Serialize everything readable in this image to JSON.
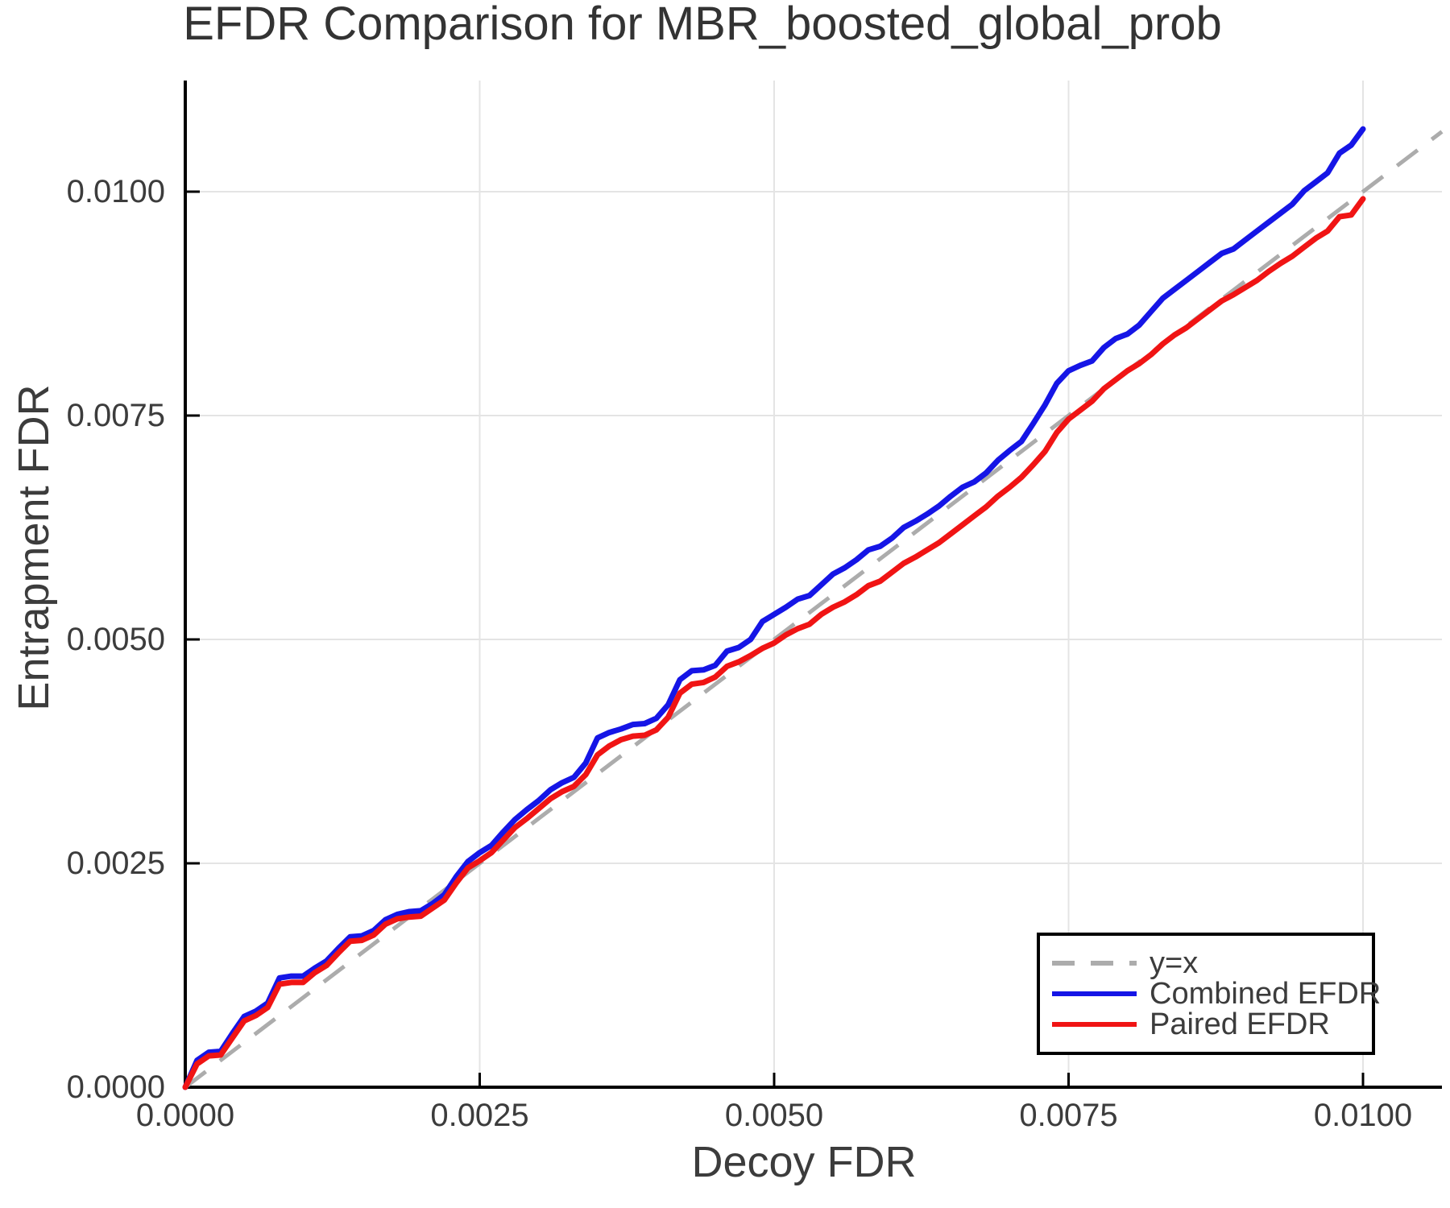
{
  "figure": {
    "background": "#FFFFFF"
  },
  "chart_data": {
    "type": "line",
    "title": "EFDR Comparison for MBR_boosted_global_prob",
    "xlabel": "Decoy FDR",
    "ylabel": "Entrapment FDR",
    "xlim": [
      0.0,
      0.01067
    ],
    "ylim": [
      0.0,
      0.01124
    ],
    "grid": true,
    "legend_position": "bottom-right",
    "colors": {
      "grid": "#E4E4E4",
      "axis": "#000000",
      "text": "#3C3C3C",
      "title": "#333333"
    },
    "x_ticks": {
      "values": [
        0.0,
        0.0025,
        0.005,
        0.0075,
        0.01
      ],
      "labels": [
        "0.0000",
        "0.0025",
        "0.0050",
        "0.0075",
        "0.0100"
      ]
    },
    "y_ticks": {
      "values": [
        0.0,
        0.0025,
        0.005,
        0.0075,
        0.01
      ],
      "labels": [
        "0.0000",
        "0.0025",
        "0.0050",
        "0.0075",
        "0.0100"
      ]
    },
    "reference_line": {
      "name": "y=x",
      "color": "#ACACAC",
      "style": "dashed",
      "from": [
        0.0,
        0.0
      ],
      "to": [
        0.01067,
        0.01067
      ]
    },
    "x": [
      0,
      0.0001,
      0.0002,
      0.0003,
      0.0004,
      0.0005,
      0.0006,
      0.0007,
      0.0008,
      0.0009,
      0.001,
      0.0011,
      0.0012,
      0.0013,
      0.0014,
      0.0015,
      0.0016,
      0.0017,
      0.0018,
      0.0019,
      0.002,
      0.0021,
      0.0022,
      0.0023,
      0.0024,
      0.0025,
      0.0026,
      0.0027,
      0.0028,
      0.0029,
      0.003,
      0.0031,
      0.0032,
      0.0033,
      0.0034,
      0.0035,
      0.0036,
      0.0037,
      0.0038,
      0.0039,
      0.004,
      0.0041,
      0.0042,
      0.0043,
      0.0044,
      0.0045,
      0.0046,
      0.0047,
      0.0048,
      0.0049,
      0.005,
      0.0051,
      0.0052,
      0.0053,
      0.0054,
      0.0055,
      0.0056,
      0.0057,
      0.0058,
      0.0059,
      0.006,
      0.0061,
      0.0062,
      0.0063,
      0.0064,
      0.0065,
      0.0066,
      0.0067,
      0.0068,
      0.0069,
      0.007,
      0.0071,
      0.0072,
      0.0073,
      0.0074,
      0.0075,
      0.0076,
      0.0077,
      0.0078,
      0.0079,
      0.008,
      0.0081,
      0.0082,
      0.0083,
      0.0084,
      0.0085,
      0.0086,
      0.0087,
      0.0088,
      0.0089,
      0.009,
      0.0091,
      0.0092,
      0.0093,
      0.0094,
      0.0095,
      0.0096,
      0.0097,
      0.0098,
      0.0099,
      0.01
    ],
    "series": [
      {
        "name": "Combined EFDR",
        "color": "#1515E6",
        "style": "solid",
        "values": [
          0,
          0.0003,
          0.00039,
          0.0004,
          0.0006,
          0.00079,
          0.00085,
          0.00094,
          0.00122,
          0.00124,
          0.00124,
          0.00133,
          0.00141,
          0.00155,
          0.00168,
          0.00169,
          0.00175,
          0.00187,
          0.00193,
          0.00196,
          0.00197,
          0.00205,
          0.00215,
          0.00235,
          0.00252,
          0.00262,
          0.0027,
          0.00285,
          0.00299,
          0.0031,
          0.0032,
          0.00332,
          0.0034,
          0.00346,
          0.00362,
          0.0039,
          0.00396,
          0.004,
          0.00405,
          0.00406,
          0.00412,
          0.00427,
          0.00455,
          0.00465,
          0.00466,
          0.00471,
          0.00487,
          0.00491,
          0.005,
          0.0052,
          0.00528,
          0.00536,
          0.00545,
          0.00549,
          0.00561,
          0.00573,
          0.0058,
          0.00589,
          0.006,
          0.00604,
          0.00613,
          0.00625,
          0.00632,
          0.0064,
          0.00649,
          0.0066,
          0.0067,
          0.00676,
          0.00686,
          0.007,
          0.00711,
          0.00721,
          0.00741,
          0.00762,
          0.00786,
          0.008,
          0.00806,
          0.00811,
          0.00826,
          0.00836,
          0.00841,
          0.00851,
          0.00866,
          0.00881,
          0.00891,
          0.00901,
          0.00911,
          0.00921,
          0.00931,
          0.00936,
          0.00946,
          0.00956,
          0.00966,
          0.00976,
          0.00986,
          0.01001,
          0.01011,
          0.01021,
          0.01043,
          0.01052,
          0.0107
        ]
      },
      {
        "name": "Paired EFDR",
        "color": "#F01414",
        "style": "solid",
        "values": [
          0,
          0.00026,
          0.00035,
          0.00036,
          0.00055,
          0.00074,
          0.0008,
          0.00089,
          0.00115,
          0.00117,
          0.00117,
          0.00128,
          0.00136,
          0.0015,
          0.00163,
          0.00164,
          0.0017,
          0.00182,
          0.00188,
          0.0019,
          0.00191,
          0.002,
          0.00209,
          0.00228,
          0.00245,
          0.00253,
          0.00262,
          0.00276,
          0.0029,
          0.003,
          0.00311,
          0.00322,
          0.0033,
          0.00336,
          0.00349,
          0.00371,
          0.00381,
          0.00388,
          0.00392,
          0.00393,
          0.00399,
          0.00413,
          0.0044,
          0.0045,
          0.00452,
          0.00458,
          0.0047,
          0.00475,
          0.00482,
          0.0049,
          0.00496,
          0.00505,
          0.00512,
          0.00517,
          0.00528,
          0.00536,
          0.00542,
          0.0055,
          0.0056,
          0.00565,
          0.00575,
          0.00585,
          0.00592,
          0.006,
          0.00608,
          0.00618,
          0.00628,
          0.00638,
          0.00648,
          0.0066,
          0.0067,
          0.00681,
          0.00695,
          0.0071,
          0.00731,
          0.00746,
          0.00756,
          0.00766,
          0.0078,
          0.0079,
          0.008,
          0.00808,
          0.00818,
          0.0083,
          0.0084,
          0.00848,
          0.00858,
          0.00868,
          0.00878,
          0.00885,
          0.00893,
          0.00901,
          0.00911,
          0.0092,
          0.00928,
          0.00938,
          0.00948,
          0.00956,
          0.00972,
          0.00974,
          0.00992
        ]
      }
    ],
    "legend": {
      "entries": [
        {
          "label": "y=x",
          "color": "#ACACAC",
          "dashed": true
        },
        {
          "label": "Combined EFDR",
          "color": "#1515E6",
          "dashed": false
        },
        {
          "label": "Paired EFDR",
          "color": "#F01414",
          "dashed": false
        }
      ]
    }
  }
}
